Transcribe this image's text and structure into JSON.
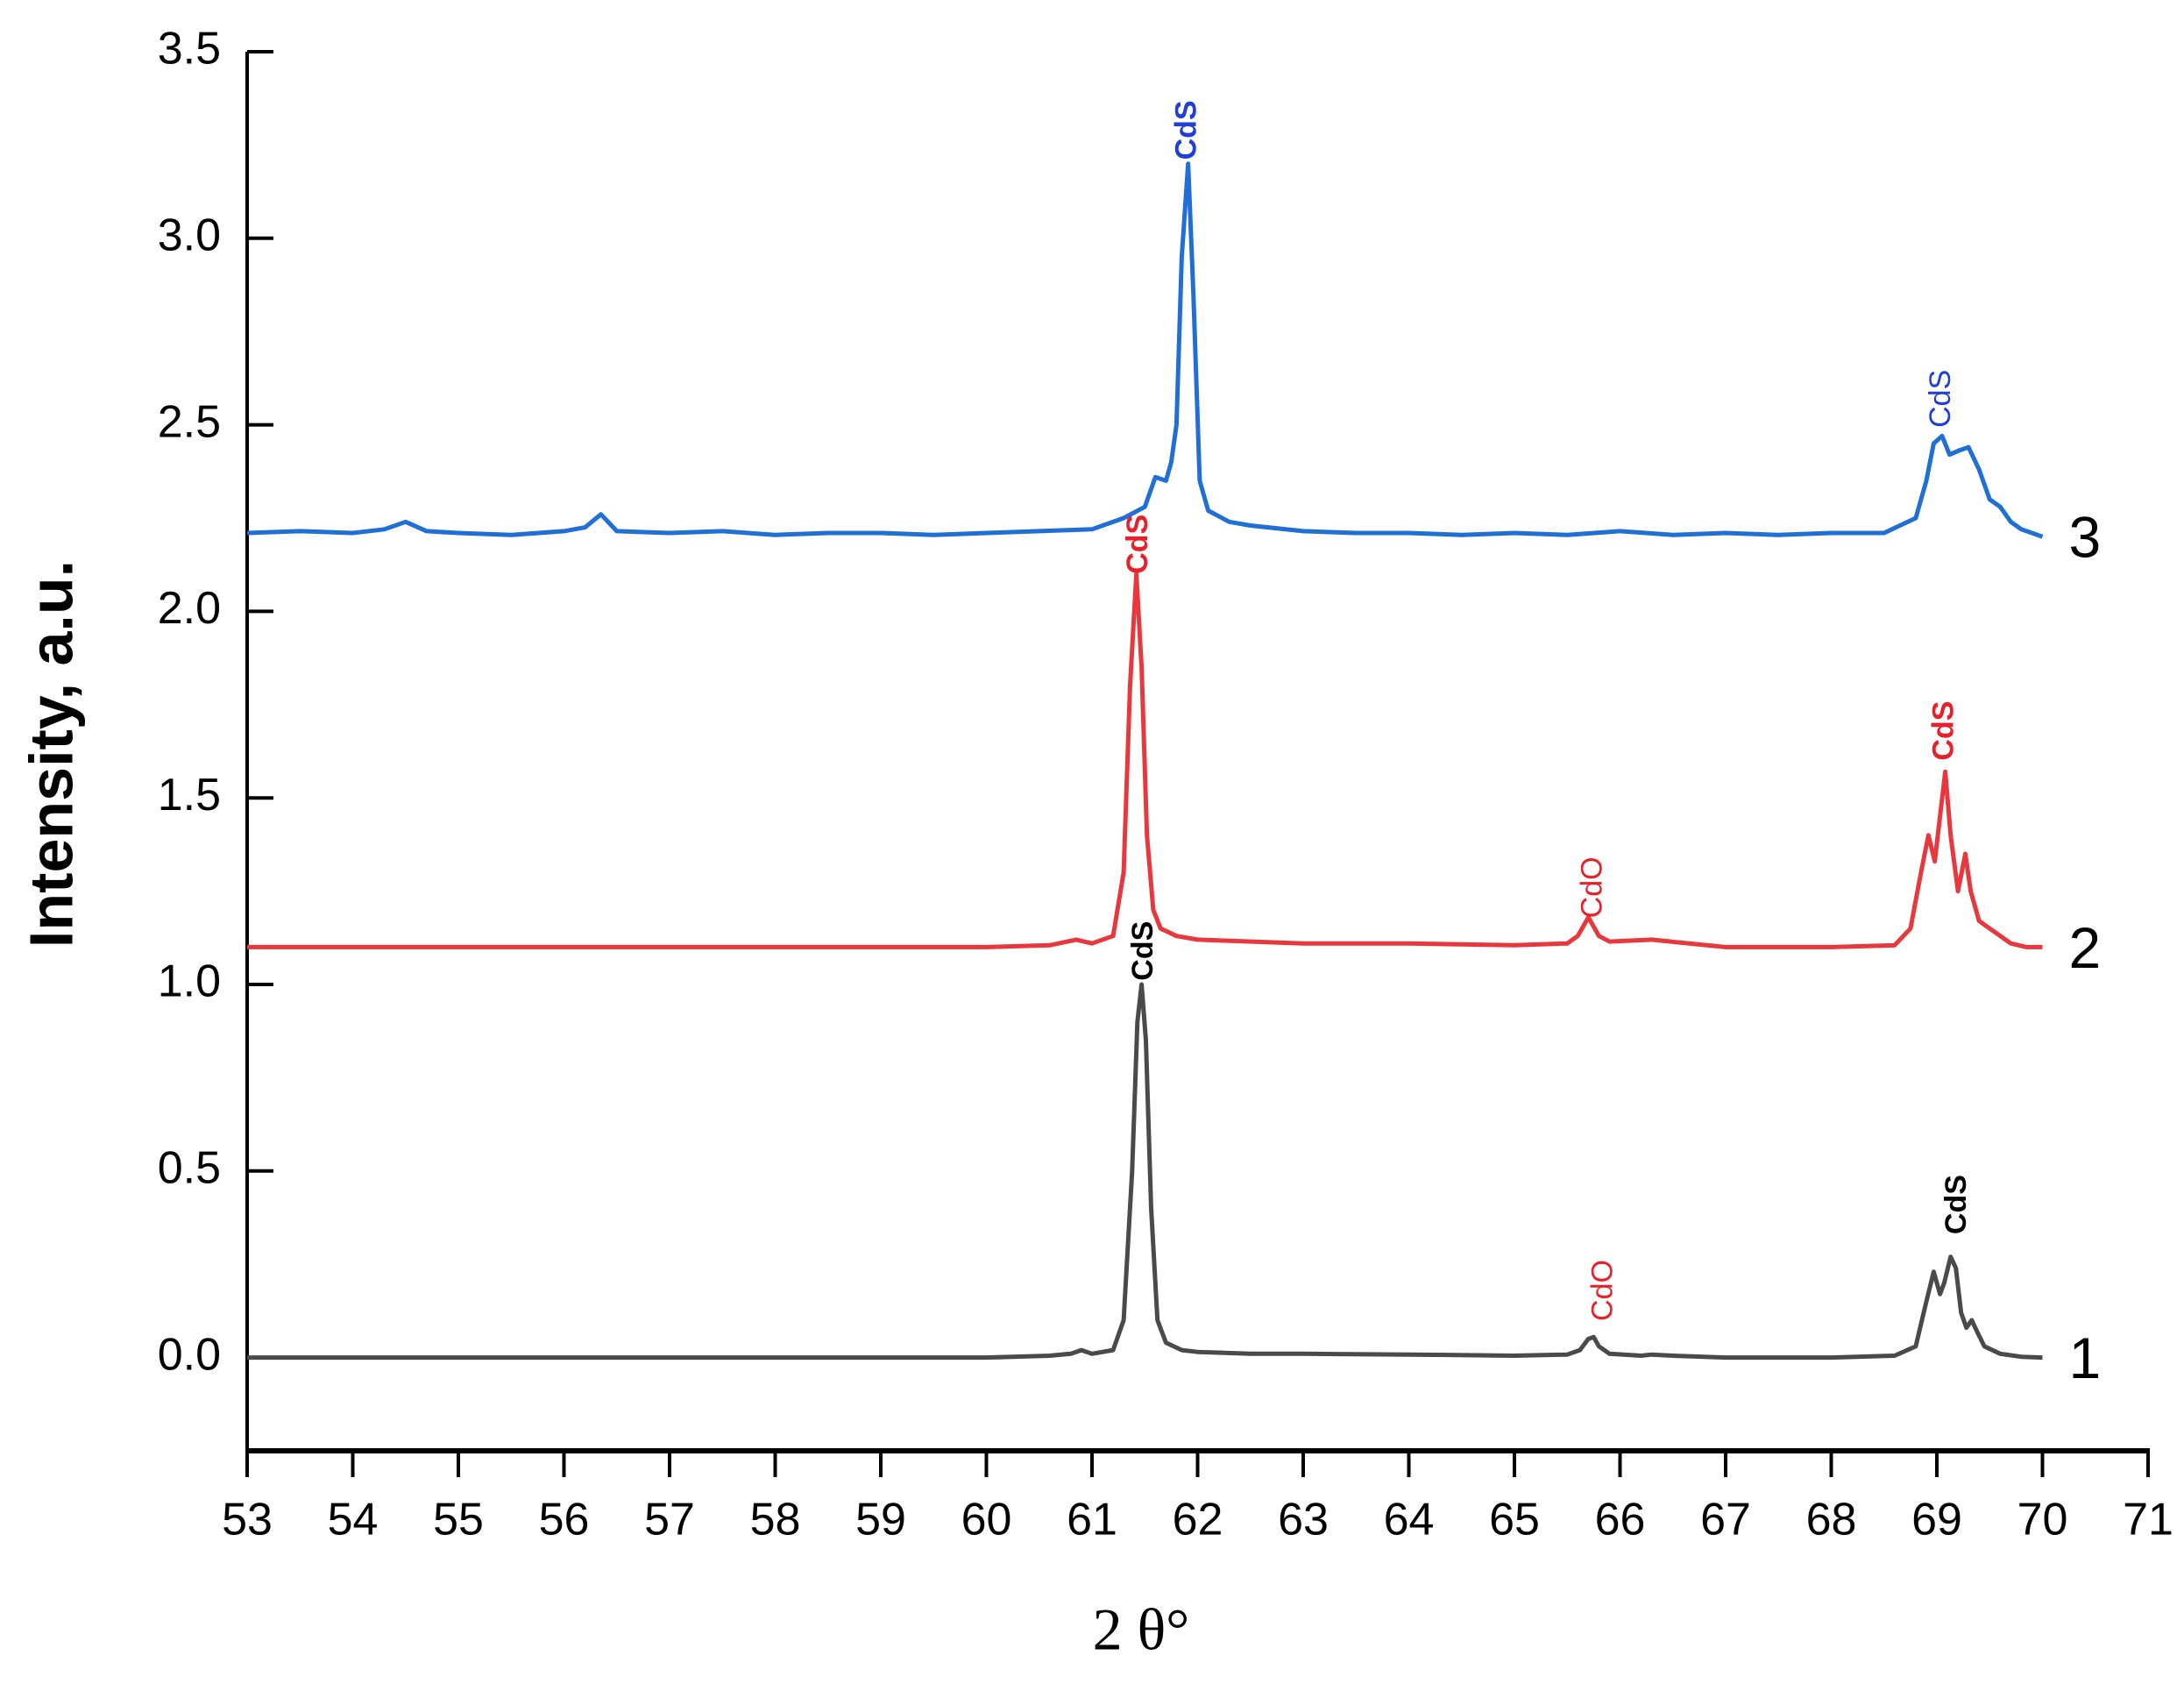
{
  "chart_data": {
    "type": "line",
    "xlabel": "2 θ°",
    "ylabel": "Intensity, a.u.",
    "xlim": [
      53,
      71
    ],
    "ylim": [
      -0.25,
      3.5
    ],
    "xticks": [
      53,
      54,
      55,
      56,
      57,
      58,
      59,
      60,
      61,
      62,
      63,
      64,
      65,
      66,
      67,
      68,
      69,
      70,
      71
    ],
    "yticks": [
      {
        "value": 0,
        "label": "0.0"
      },
      0.5,
      {
        "value": 1,
        "label": "1.0"
      },
      1.5,
      {
        "value": 2,
        "label": "2.0"
      },
      2.5,
      {
        "value": 3,
        "label": "3.0"
      },
      3.5
    ],
    "series": [
      {
        "name": "1",
        "color": "#4a4a4a",
        "x": [
          53,
          54,
          55,
          56,
          57,
          58,
          59,
          60,
          60.6,
          60.8,
          60.9,
          61.0,
          61.2,
          61.3,
          61.38,
          61.43,
          61.47,
          61.51,
          61.56,
          61.62,
          61.7,
          61.85,
          62.0,
          62.5,
          63,
          64,
          65,
          65.5,
          65.62,
          65.7,
          65.75,
          65.8,
          65.9,
          66.2,
          66.3,
          66.5,
          67,
          68,
          68.6,
          68.8,
          68.9,
          68.97,
          69.03,
          69.07,
          69.13,
          69.18,
          69.23,
          69.28,
          69.33,
          69.38,
          69.45,
          69.6,
          69.8,
          70
        ],
        "values": [
          0,
          0,
          0,
          0,
          0,
          0,
          0,
          0,
          0.005,
          0.01,
          0.02,
          0.01,
          0.02,
          0.1,
          0.5,
          0.9,
          1.0,
          0.85,
          0.4,
          0.1,
          0.04,
          0.02,
          0.015,
          0.01,
          0.01,
          0.008,
          0.005,
          0.008,
          0.02,
          0.05,
          0.055,
          0.03,
          0.01,
          0.005,
          0.008,
          0.005,
          0,
          0,
          0.005,
          0.03,
          0.15,
          0.23,
          0.17,
          0.2,
          0.27,
          0.24,
          0.12,
          0.08,
          0.1,
          0.07,
          0.03,
          0.01,
          0.002,
          0
        ]
      },
      {
        "name": "2",
        "color": "#e8383d",
        "x": [
          53,
          55,
          57,
          59,
          60,
          60.6,
          60.85,
          61.0,
          61.2,
          61.3,
          61.36,
          61.42,
          61.47,
          61.52,
          61.58,
          61.65,
          61.8,
          62.0,
          63,
          64,
          65,
          65.5,
          65.6,
          65.7,
          65.8,
          65.9,
          66.3,
          67,
          68,
          68.6,
          68.75,
          68.85,
          68.92,
          68.98,
          69.03,
          69.08,
          69.13,
          69.2,
          69.27,
          69.32,
          69.4,
          69.5,
          69.7,
          69.85,
          70
        ],
        "values": [
          1.1,
          1.1,
          1.1,
          1.1,
          1.1,
          1.105,
          1.12,
          1.11,
          1.13,
          1.3,
          1.8,
          2.1,
          1.85,
          1.4,
          1.2,
          1.15,
          1.13,
          1.12,
          1.11,
          1.11,
          1.105,
          1.11,
          1.13,
          1.18,
          1.13,
          1.115,
          1.12,
          1.1,
          1.1,
          1.105,
          1.15,
          1.3,
          1.4,
          1.33,
          1.45,
          1.57,
          1.4,
          1.25,
          1.35,
          1.25,
          1.17,
          1.15,
          1.11,
          1.1,
          1.1
        ]
      },
      {
        "name": "3",
        "color": "#1f6fd6",
        "x": [
          53,
          53.5,
          54,
          54.3,
          54.5,
          54.7,
          55,
          55.5,
          56,
          56.2,
          56.35,
          56.5,
          57,
          57.5,
          58,
          58.5,
          59,
          59.5,
          60,
          60.5,
          61,
          61.3,
          61.5,
          61.6,
          61.7,
          61.75,
          61.8,
          61.85,
          61.91,
          61.96,
          62.02,
          62.1,
          62.3,
          62.5,
          63,
          63.5,
          64,
          64.5,
          65,
          65.5,
          66,
          66.5,
          67,
          67.5,
          68,
          68.5,
          68.8,
          68.9,
          68.97,
          69.05,
          69.12,
          69.2,
          69.3,
          69.4,
          69.5,
          69.6,
          69.7,
          69.8,
          69.9,
          70
        ],
        "values": [
          2.21,
          2.215,
          2.21,
          2.22,
          2.24,
          2.215,
          2.21,
          2.205,
          2.215,
          2.225,
          2.26,
          2.215,
          2.21,
          2.215,
          2.205,
          2.21,
          2.21,
          2.205,
          2.21,
          2.215,
          2.22,
          2.25,
          2.28,
          2.36,
          2.35,
          2.4,
          2.5,
          2.95,
          3.2,
          2.85,
          2.35,
          2.27,
          2.24,
          2.23,
          2.215,
          2.21,
          2.21,
          2.205,
          2.21,
          2.205,
          2.215,
          2.205,
          2.21,
          2.205,
          2.21,
          2.21,
          2.25,
          2.35,
          2.45,
          2.47,
          2.42,
          2.43,
          2.44,
          2.38,
          2.3,
          2.28,
          2.24,
          2.22,
          2.21,
          2.2
        ]
      }
    ],
    "annotations": [
      {
        "text": "CdS",
        "x": 61.91,
        "y": 3.29,
        "color": "#1f3fd6",
        "bold": true
      },
      {
        "text": "CdS",
        "x": 69.05,
        "y": 2.57,
        "color": "#1f3fd6",
        "bold": false
      },
      {
        "text": "CdS",
        "x": 61.45,
        "y": 2.18,
        "color": "#e8202a",
        "bold": true
      },
      {
        "text": "CdO",
        "x": 65.75,
        "y": 1.26,
        "color": "#e8202a",
        "bold": false
      },
      {
        "text": "CdS",
        "x": 69.08,
        "y": 1.68,
        "color": "#e8202a",
        "bold": true
      },
      {
        "text": "CdS",
        "x": 61.5,
        "y": 1.09,
        "color": "#000000",
        "bold": true
      },
      {
        "text": "CdO",
        "x": 65.85,
        "y": 0.18,
        "color": "#e8202a",
        "bold": false
      },
      {
        "text": "CdS",
        "x": 69.2,
        "y": 0.41,
        "color": "#000000",
        "bold": true
      }
    ]
  }
}
